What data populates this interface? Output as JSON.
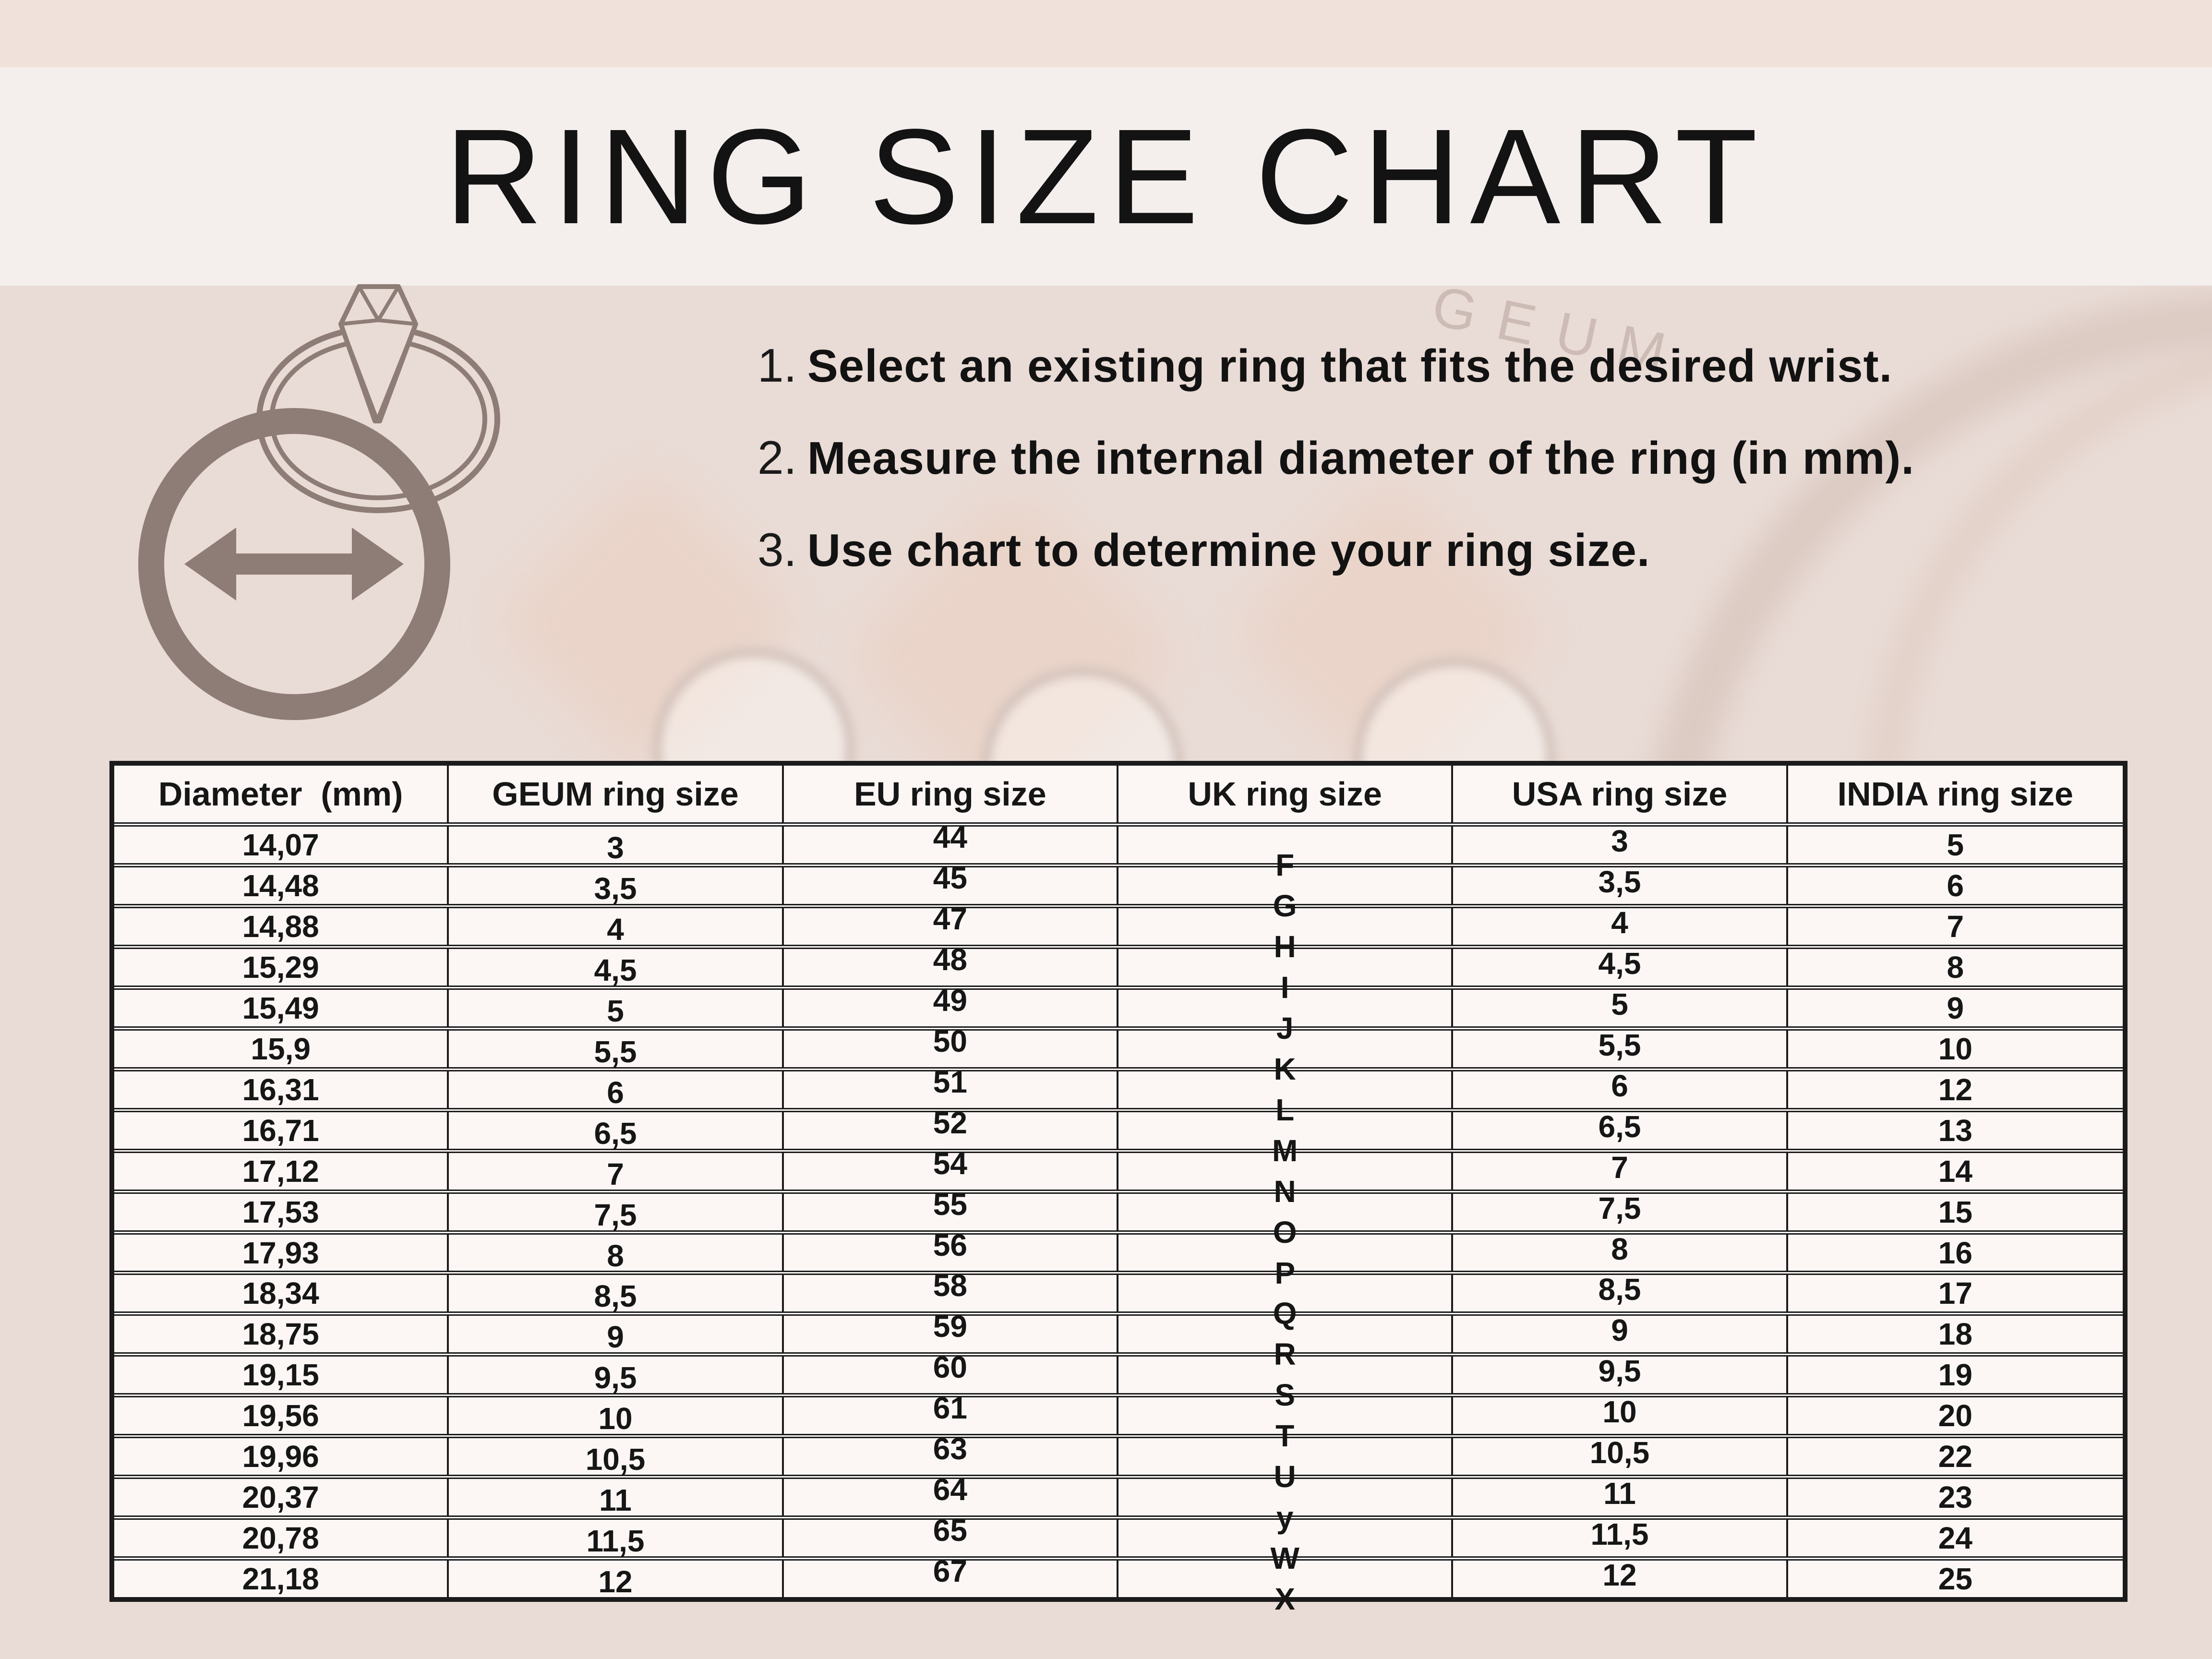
{
  "page": {
    "title": "RING SIZE CHART",
    "photo_watermark": "GEUM"
  },
  "instructions": [
    {
      "num": "1.",
      "text": "Select an existing ring that fits the desired wrist."
    },
    {
      "num": "2.",
      "text": "Measure the internal diameter of the ring (in mm)."
    },
    {
      "num": "3.",
      "text": "Use chart to determine your ring size."
    }
  ],
  "size_chart": {
    "columns": [
      "Diameter  (mm)",
      "GEUM ring size",
      "EU ring size",
      "UK ring size",
      "USA ring size",
      "INDIA ring size"
    ],
    "rows": [
      [
        "14,07",
        "3",
        "44",
        "F",
        "3",
        "5"
      ],
      [
        "14,48",
        "3,5",
        "45",
        "G",
        "3,5",
        "6"
      ],
      [
        "14,88",
        "4",
        "47",
        "H",
        "4",
        "7"
      ],
      [
        "15,29",
        "4,5",
        "48",
        "I",
        "4,5",
        "8"
      ],
      [
        "15,49",
        "5",
        "49",
        "J",
        "5",
        "9"
      ],
      [
        "15,9",
        "5,5",
        "50",
        "K",
        "5,5",
        "10"
      ],
      [
        "16,31",
        "6",
        "51",
        "L",
        "6",
        "12"
      ],
      [
        "16,71",
        "6,5",
        "52",
        "M",
        "6,5",
        "13"
      ],
      [
        "17,12",
        "7",
        "54",
        "N",
        "7",
        "14"
      ],
      [
        "17,53",
        "7,5",
        "55",
        "O",
        "7,5",
        "15"
      ],
      [
        "17,93",
        "8",
        "56",
        "P",
        "8",
        "16"
      ],
      [
        "18,34",
        "8,5",
        "58",
        "Q",
        "8,5",
        "17"
      ],
      [
        "18,75",
        "9",
        "59",
        "R",
        "9",
        "18"
      ],
      [
        "19,15",
        "9,5",
        "60",
        "S",
        "9,5",
        "19"
      ],
      [
        "19,56",
        "10",
        "61",
        "T",
        "10",
        "20"
      ],
      [
        "19,96",
        "10,5",
        "63",
        "U",
        "10,5",
        "22"
      ],
      [
        "20,37",
        "11",
        "64",
        "y",
        "11",
        "23"
      ],
      [
        "20,78",
        "11,5",
        "65",
        "W",
        "11,5",
        "24"
      ],
      [
        "21,18",
        "12",
        "67",
        "X",
        "12",
        "25"
      ]
    ]
  },
  "colors": {
    "top_strip": "#f0e1da",
    "title_band": "#f4efed",
    "page_background": "#e9dbd5",
    "table_background": "#fcf7f5",
    "table_border": "#1b1b1b",
    "illustration": "#8d7d76",
    "text": "#141414"
  }
}
